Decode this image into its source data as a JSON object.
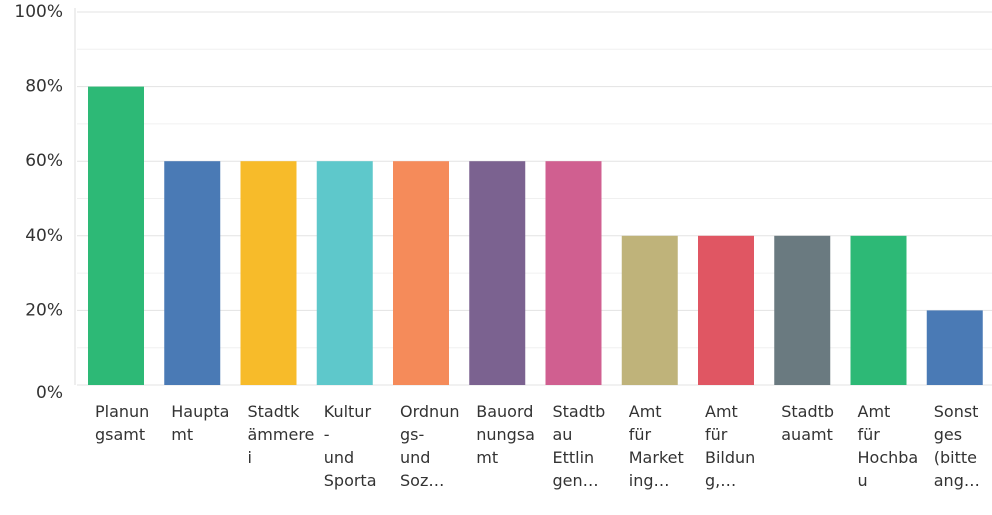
{
  "chart_data": {
    "type": "bar",
    "categories": [
      "Planun\ngsamt",
      "Haupta\nmt",
      "Stadtk\nämmere\ni",
      "Kultur\n-\nund\nSporta",
      "Ordnun\ngs-\nund\nSoz…",
      "Bauord\nnungsa\nmt",
      "Stadtb\nau\nEttlin\ngen…",
      "Amt\nfür\nMarket\ning…",
      "Amt\nfür\nBildun\ng,…",
      "Stadtb\nauamt",
      "Amt\nfür\nHochba\nu",
      "Sonst\nges\n(bitte\nang…"
    ],
    "values": [
      80,
      60,
      60,
      60,
      60,
      60,
      60,
      40,
      40,
      40,
      40,
      20
    ],
    "colors": [
      "#2db976",
      "#4a7ab5",
      "#f7bb2a",
      "#5ec8cb",
      "#f58b5a",
      "#7b6290",
      "#d05f90",
      "#bfb37a",
      "#e05663",
      "#6a7a80",
      "#2db976",
      "#4a7ab5"
    ],
    "ylim": [
      0,
      100
    ],
    "yticks": [
      {
        "value": 0,
        "label": "0%"
      },
      {
        "value": 20,
        "label": "20%"
      },
      {
        "value": 40,
        "label": "40%"
      },
      {
        "value": 60,
        "label": "60%"
      },
      {
        "value": 80,
        "label": "80%"
      },
      {
        "value": 100,
        "label": "100%"
      }
    ],
    "minor_gridlines": [
      10,
      30,
      50,
      70,
      90
    ],
    "grid": true
  }
}
